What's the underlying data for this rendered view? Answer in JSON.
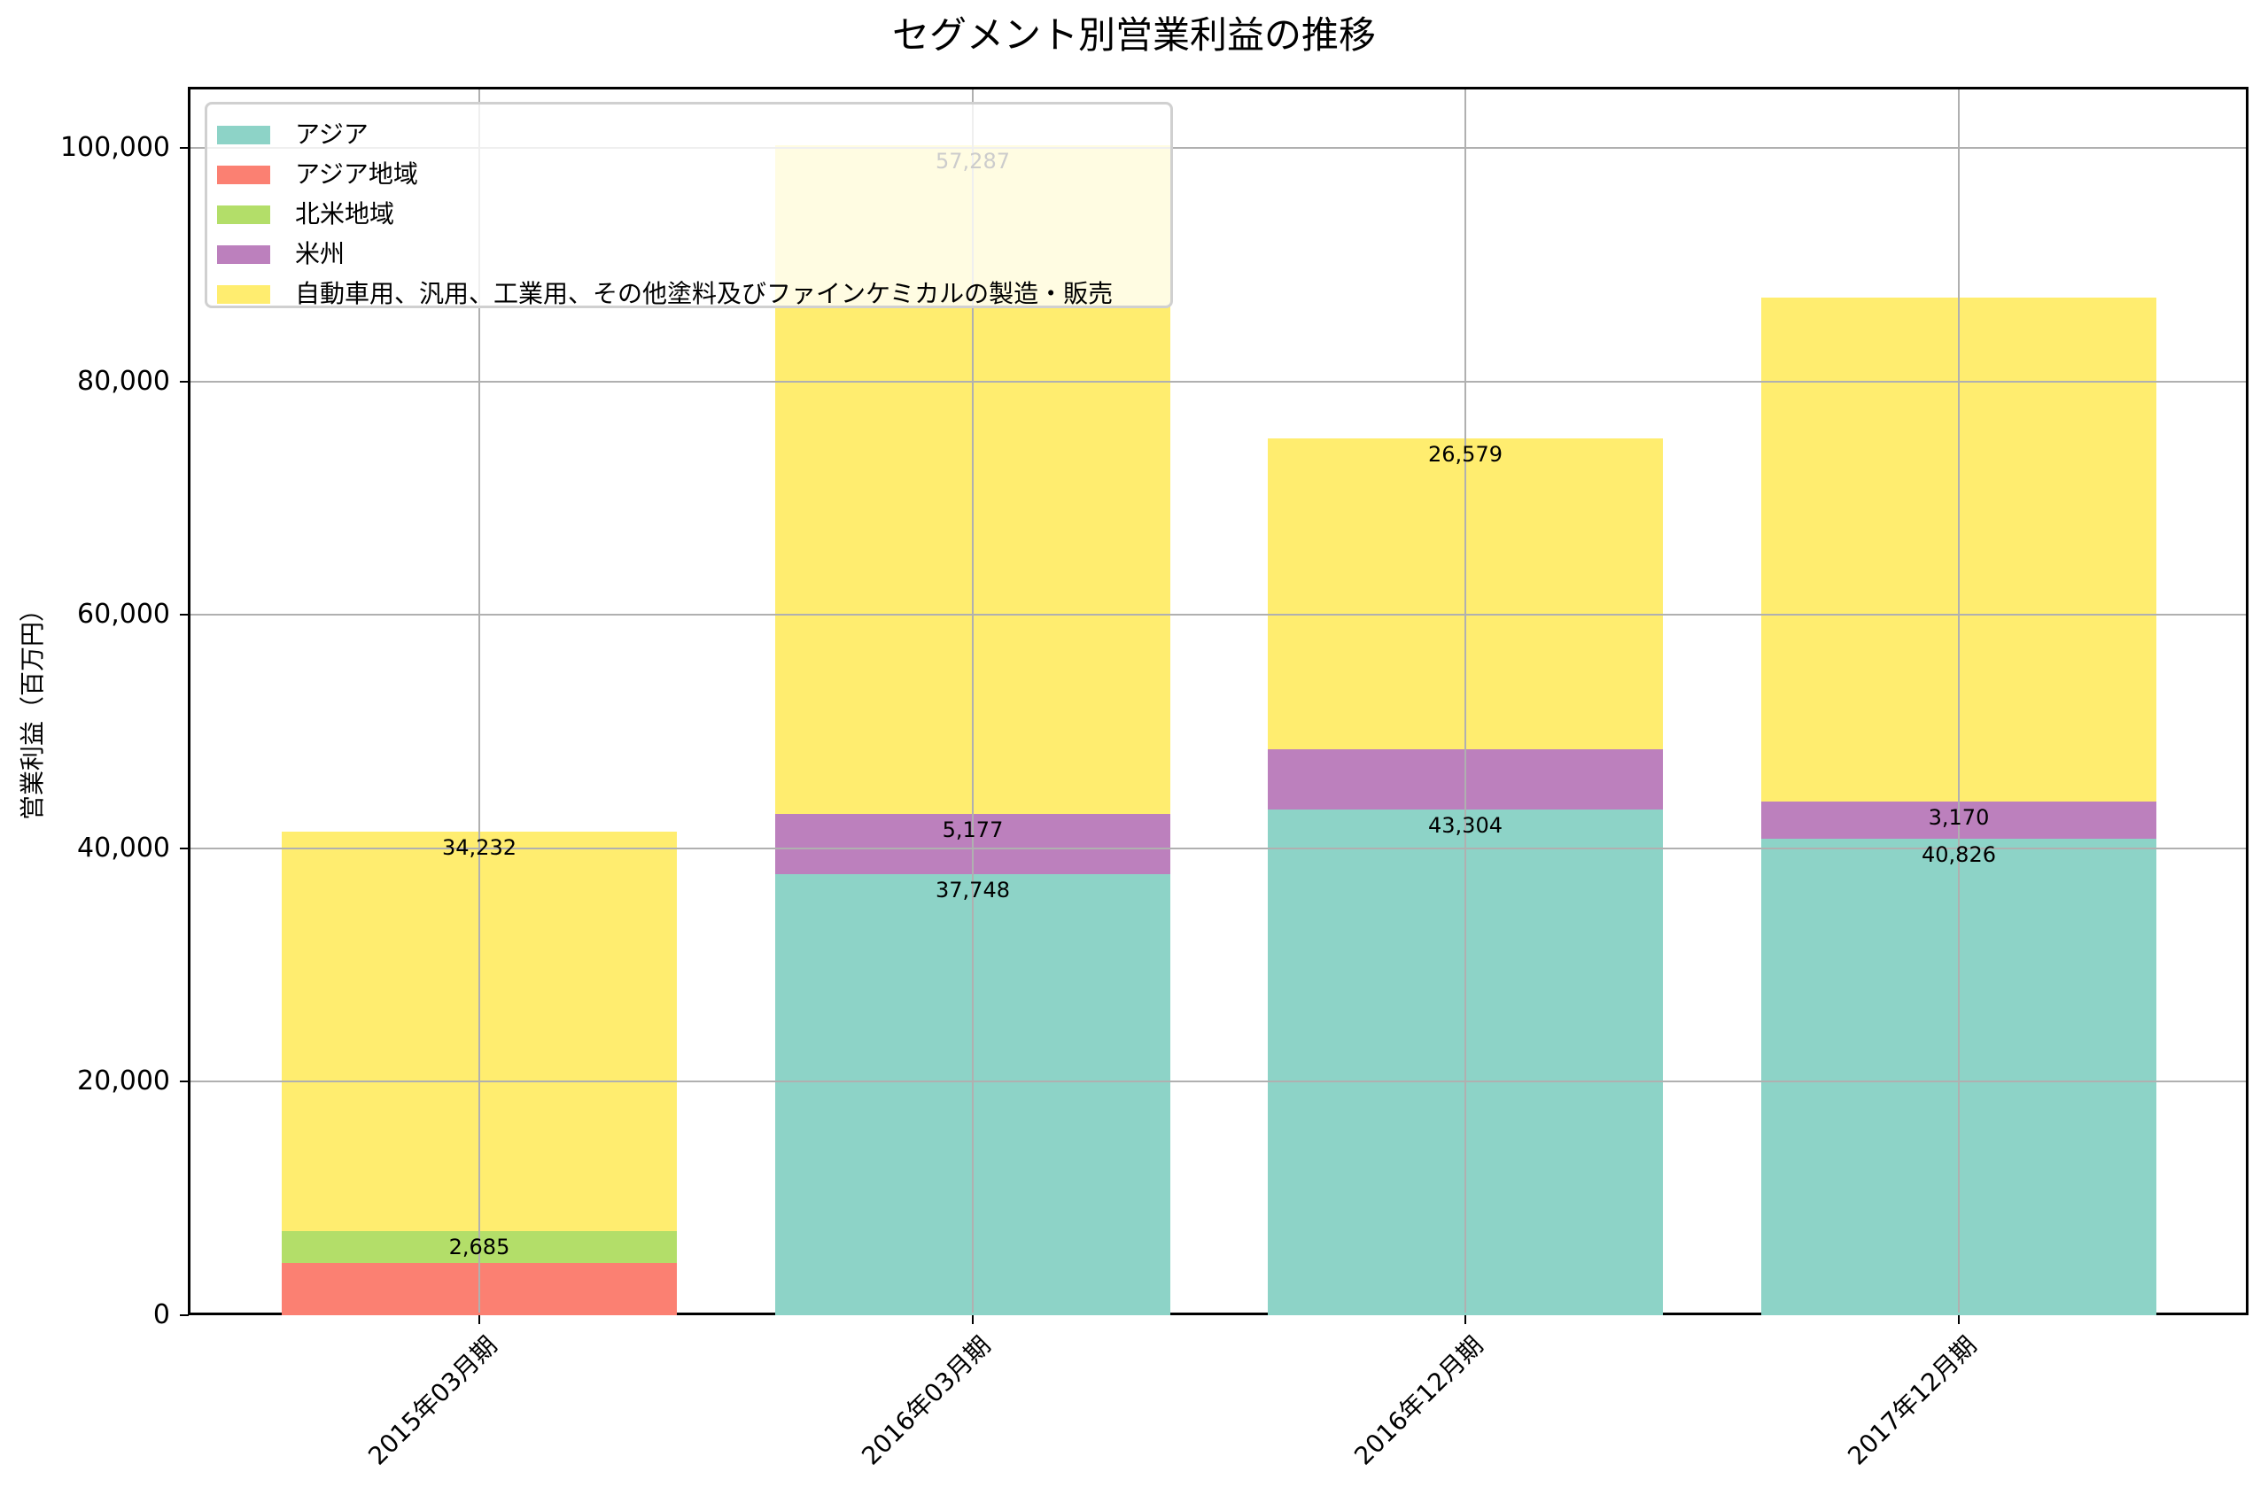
{
  "chart_data": {
    "type": "bar",
    "stacked": true,
    "title": "セグメント別営業利益の推移",
    "xlabel": "",
    "ylabel": "営業利益（百万円）",
    "ylim": [
      0,
      105000
    ],
    "yticks": [
      0,
      20000,
      40000,
      60000,
      80000,
      100000
    ],
    "ytick_labels": [
      "0",
      "20,000",
      "40,000",
      "60,000",
      "80,000",
      "100,000"
    ],
    "grid": true,
    "legend_position": "upper left",
    "categories": [
      "2015年03月期",
      "2016年03月期",
      "2016年12月期",
      "2017年12月期"
    ],
    "series": [
      {
        "name": "アジア",
        "color": "#8dd3c7",
        "values": [
          0,
          37748,
          43304,
          40826
        ],
        "labels": [
          "",
          "37,748",
          "43,304",
          "40,826"
        ]
      },
      {
        "name": "アジア地域",
        "color": "#fb8072",
        "values": [
          4500,
          0,
          0,
          0
        ],
        "labels": [
          "",
          "",
          "",
          ""
        ]
      },
      {
        "name": "北米地域",
        "color": "#b3de69",
        "values": [
          2685,
          0,
          0,
          0
        ],
        "labels": [
          "2,685",
          "",
          "",
          ""
        ]
      },
      {
        "name": "米州",
        "color": "#bc80bd",
        "values": [
          0,
          5177,
          5200,
          3170
        ],
        "labels": [
          "",
          "5,177",
          "",
          "3,170"
        ]
      },
      {
        "name": "自動車用、汎用、工業用、その他塗料及びファインケミカルの製造・販売",
        "color": "#ffed6f",
        "values": [
          34232,
          57287,
          26579,
          43180
        ],
        "labels": [
          "34,232",
          "57,287",
          "26,579",
          ""
        ]
      }
    ]
  }
}
